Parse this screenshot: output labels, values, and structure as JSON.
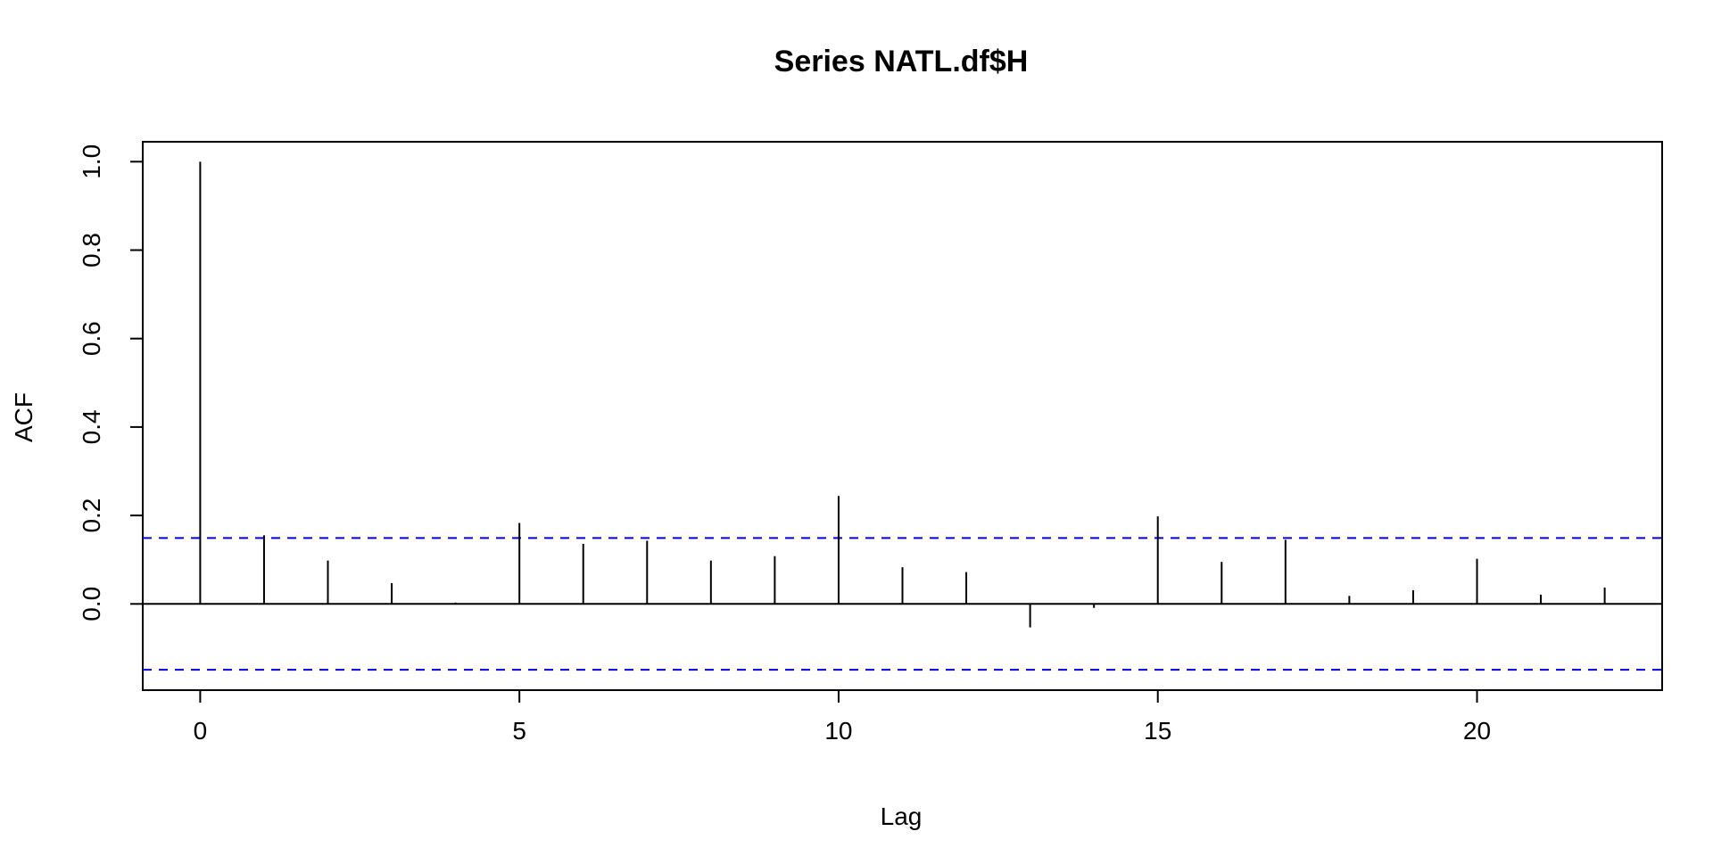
{
  "chart_data": {
    "type": "bar",
    "subtype": "acf-lag-plot",
    "title": "Series  NATL.df$H",
    "xlabel": "Lag",
    "ylabel": "ACF",
    "xlim": [
      -0.9,
      22.9
    ],
    "ylim": [
      -0.195,
      1.045
    ],
    "x_ticks": [
      0,
      5,
      10,
      15,
      20
    ],
    "x_tick_labels": [
      "0",
      "5",
      "10",
      "15",
      "20"
    ],
    "y_ticks": [
      0.0,
      0.2,
      0.4,
      0.6,
      0.8,
      1.0
    ],
    "y_tick_labels": [
      "0.0",
      "0.2",
      "0.4",
      "0.6",
      "0.8",
      "1.0"
    ],
    "lags": [
      0,
      1,
      2,
      3,
      4,
      5,
      6,
      7,
      8,
      9,
      10,
      11,
      12,
      13,
      14,
      15,
      16,
      17,
      18,
      19,
      20,
      21,
      22
    ],
    "values": [
      1.0,
      0.155,
      0.098,
      0.047,
      0.003,
      0.183,
      0.136,
      0.143,
      0.098,
      0.108,
      0.244,
      0.083,
      0.072,
      -0.053,
      -0.009,
      0.198,
      0.095,
      0.145,
      0.018,
      0.031,
      0.102,
      0.021,
      0.037
    ],
    "confidence_bounds": [
      0.149,
      -0.149
    ],
    "zero_line": 0,
    "grid": false,
    "colors": {
      "bars": "#000000",
      "confidence": "#0000ee",
      "axes": "#000000"
    }
  }
}
